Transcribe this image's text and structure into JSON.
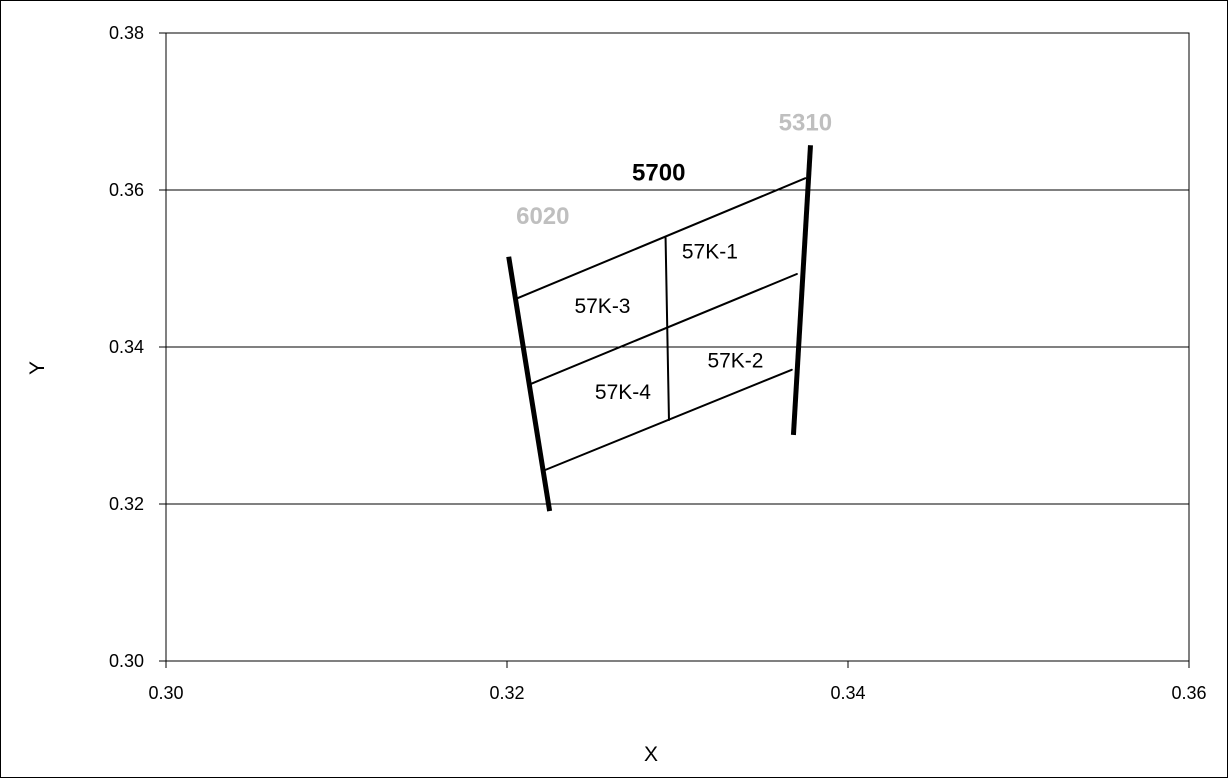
{
  "chart_data": {
    "type": "scatter",
    "title": "",
    "xlabel": "X",
    "ylabel": "Y",
    "xlim": [
      0.3,
      0.36
    ],
    "ylim": [
      0.3,
      0.38
    ],
    "xticks": [
      "0.30",
      "0.32",
      "0.34",
      "0.36"
    ],
    "yticks": [
      "0.30",
      "0.32",
      "0.34",
      "0.36",
      "0.38"
    ],
    "xtick_values": [
      0.3,
      0.32,
      0.34,
      0.36
    ],
    "ytick_values": [
      0.3,
      0.32,
      0.34,
      0.36,
      0.38
    ],
    "grid": {
      "horizontal": true,
      "vertical": false
    },
    "colors": {
      "line": "#000000",
      "iso_muted": "#bfbfbf",
      "iso_bold": "#000000"
    },
    "isotemperature_lines": [
      {
        "name": "6020",
        "points": [
          [
            0.3201,
            0.3515
          ],
          [
            0.3225,
            0.3191
          ]
        ]
      },
      {
        "name": "5310",
        "points": [
          [
            0.3378,
            0.3657
          ],
          [
            0.3368,
            0.3288
          ]
        ]
      }
    ],
    "quadrangle_lines": [
      {
        "name": "top",
        "points": [
          [
            0.3206,
            0.3462
          ],
          [
            0.3375,
            0.3615
          ]
        ]
      },
      {
        "name": "middle",
        "points": [
          [
            0.3214,
            0.3353
          ],
          [
            0.337,
            0.3493
          ]
        ]
      },
      {
        "name": "bottom",
        "points": [
          [
            0.3222,
            0.3243
          ],
          [
            0.3367,
            0.3371
          ]
        ]
      },
      {
        "name": "divider",
        "points": [
          [
            0.3293,
            0.3539
          ],
          [
            0.3295,
            0.3307
          ]
        ]
      }
    ],
    "annotations": [
      {
        "text": "5700",
        "x": 0.3289,
        "y": 0.3612,
        "style": "bold"
      },
      {
        "text": "6020",
        "x": 0.3221,
        "y": 0.3557,
        "style": "muted"
      },
      {
        "text": "5310",
        "x": 0.3375,
        "y": 0.3676,
        "style": "muted"
      },
      {
        "text": "57K-1",
        "x": 0.3319,
        "y": 0.3513,
        "style": "normal"
      },
      {
        "text": "57K-3",
        "x": 0.3256,
        "y": 0.3443,
        "style": "normal"
      },
      {
        "text": "57K-2",
        "x": 0.3334,
        "y": 0.3374,
        "style": "normal"
      },
      {
        "text": "57K-4",
        "x": 0.3268,
        "y": 0.3334,
        "style": "normal"
      }
    ]
  }
}
